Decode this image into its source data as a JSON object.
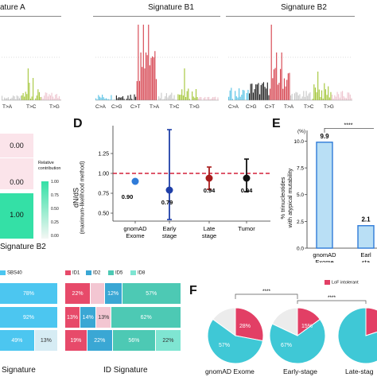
{
  "panel_a": {
    "titles": [
      "ature A",
      "Signature B1",
      "Signature B2"
    ],
    "xlabels_a": [
      "T>A",
      "T>C",
      "T>G"
    ],
    "xlabels_b": [
      "C>A",
      "C>G",
      "C>T",
      "T>A",
      "T>C",
      "T>G"
    ],
    "colors": {
      "CA": "#58c3e6",
      "CG": "#222222",
      "CT": "#d6434f",
      "TA": "#c9c9c9",
      "TC": "#a4c639",
      "TG": "#eec5cf"
    }
  },
  "panel_c": {
    "values": [
      "0.00",
      "0.00",
      "1.00"
    ],
    "legend_label": "Relative contribution",
    "legend_ticks": [
      "1.00",
      "0.75",
      "0.50",
      "0.25",
      "0.00"
    ],
    "xlabel": "Signature B2"
  },
  "panel_d": {
    "letter": "D",
    "ylabel_1": "dN/dS",
    "ylabel_2": "(maximum-likelihood method)",
    "yticks": [
      "1.25",
      "1.00",
      "0.75",
      "0.50"
    ],
    "categories": [
      "gnomAD Exome",
      "Early stage",
      "Late stage",
      "Tumor"
    ],
    "cat_lines": [
      [
        "gnomAD",
        "Exome"
      ],
      [
        "Early",
        "stage"
      ],
      [
        "Late",
        "stage"
      ],
      [
        "Tumor"
      ]
    ],
    "value_labels": [
      "0.90",
      "0.79",
      "0.94",
      "0.94"
    ]
  },
  "panel_e": {
    "letter": "E",
    "unit": "(%)",
    "ylabel_1": "% trinucleotides",
    "ylabel_2": "with atypical mutability",
    "yticks": [
      "10.0",
      "7.5",
      "5.0",
      "2.5",
      "0.0"
    ],
    "value_labels": [
      "9.9",
      "2.1"
    ],
    "cat_lines": [
      [
        "gnomAD",
        "Exome"
      ],
      [
        "Earl",
        "sta"
      ]
    ],
    "sig": "****"
  },
  "panel_bottom": {
    "left_legend": "SBS40",
    "left_labels": [
      "78%",
      "92%",
      "49%",
      "13%"
    ],
    "left_xlabel": "Signature",
    "mid_legend": [
      "ID1",
      "ID2",
      "ID5",
      "ID8"
    ],
    "mid_labels": [
      "22%",
      "12%",
      "57%",
      "13%",
      "14%",
      "13%",
      "62%",
      "19%",
      "22%",
      "56%",
      "22%"
    ],
    "mid_xlabel": "ID Signature"
  },
  "panel_f": {
    "letter": "F",
    "legend": "LoF intolerant",
    "sigs": [
      "****",
      "****"
    ],
    "pies": [
      {
        "label": "gnomAD Exome",
        "pct_red": "28%",
        "pct_main": "57%"
      },
      {
        "label": "Early-stage",
        "pct_red": "15%",
        "pct_main": "67%"
      },
      {
        "label": "Late-stag"
      }
    ]
  },
  "chart_data": [
    {
      "type": "scatter",
      "title": "",
      "ylabel": "dN/dS (maximum-likelihood method)",
      "categories": [
        "gnomAD Exome",
        "Early stage",
        "Late stage",
        "Tumor"
      ],
      "values": [
        0.9,
        0.79,
        0.94,
        0.94
      ],
      "upper": [
        0.9,
        1.55,
        1.08,
        1.18
      ],
      "lower": [
        0.9,
        0.42,
        0.8,
        0.77
      ],
      "reference_line": 1.0,
      "ylim": [
        0.4,
        1.6
      ],
      "colors": [
        "#2f7bd8",
        "#1f3fa8",
        "#a81c1c",
        "#111111"
      ]
    },
    {
      "type": "bar",
      "ylabel": "% trinucleotides with atypical mutability",
      "categories": [
        "gnomAD Exome",
        "Early stage"
      ],
      "values": [
        9.9,
        2.1
      ],
      "ylim": [
        0,
        11
      ]
    },
    {
      "type": "pie",
      "categories": [
        "gnomAD Exome",
        "Early-stage"
      ],
      "values": [
        [
          28,
          57,
          15
        ],
        [
          15,
          67,
          18
        ]
      ]
    }
  ]
}
